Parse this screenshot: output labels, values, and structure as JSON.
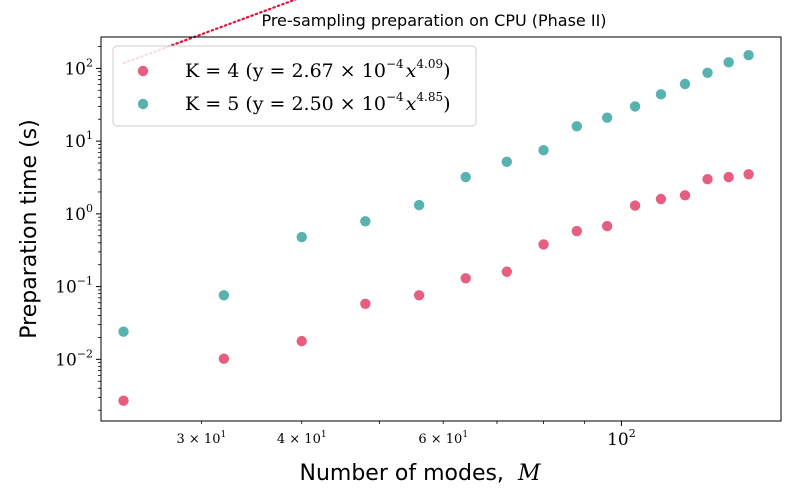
{
  "chart_data": {
    "type": "scatter",
    "title": "Pre-sampling preparation on CPU (Phase II)",
    "xlabel": "Number of modes,",
    "xlabel_var": "M",
    "ylabel": "Preparation time (s)",
    "x_scale": "log",
    "y_scale": "log",
    "xlim": [
      22.5,
      158
    ],
    "ylim": [
      0.00142,
      270
    ],
    "legend_position": "upper-left",
    "x_ticks": [
      {
        "value": 30,
        "mantissa": "3 × 10",
        "exp": "1"
      },
      {
        "value": 40,
        "mantissa": "4 × 10",
        "exp": "1"
      },
      {
        "value": 60,
        "mantissa": "6 × 10",
        "exp": "1"
      },
      {
        "value": 100,
        "mantissa": "10",
        "exp": "2"
      }
    ],
    "y_ticks": [
      {
        "value": 0.01,
        "base": "10",
        "exp": "−2"
      },
      {
        "value": 0.1,
        "base": "10",
        "exp": "−1"
      },
      {
        "value": 1,
        "base": "10",
        "exp": "0"
      },
      {
        "value": 10,
        "base": "10",
        "exp": "1"
      },
      {
        "value": 100,
        "base": "10",
        "exp": "2"
      }
    ],
    "series": [
      {
        "name": "K = 4",
        "legend_label": "K = 4 (y = 2.67 × 10^−4 x^4.09)",
        "legend_main": "K = 4 (y = 2.67 × 10",
        "legend_exp1": "−4",
        "legend_mid": "x",
        "legend_exp2": "4.09",
        "legend_end": ")",
        "color": "#e3436a",
        "fit_color": "#e0143c",
        "fit": {
          "coef": 0.000267,
          "power": 4.09
        },
        "x": [
          24,
          32,
          40,
          48,
          56,
          64,
          72,
          80,
          88,
          96,
          104,
          112,
          120,
          128,
          136,
          144
        ],
        "y": [
          0.0027,
          0.0102,
          0.0178,
          0.058,
          0.076,
          0.13,
          0.16,
          0.38,
          0.58,
          0.68,
          1.3,
          1.6,
          1.8,
          3.0,
          3.2,
          3.5
        ]
      },
      {
        "name": "K = 5",
        "legend_label": "K = 5 (y = 2.50 × 10^−4 x^4.85)",
        "legend_main": "K = 5 (y = 2.50 × 10",
        "legend_exp1": "−4",
        "legend_mid": "x",
        "legend_exp2": "4.85",
        "legend_end": ")",
        "color": "#3ba5a2",
        "fit_color": "#0e8483",
        "fit": {
          "coef": 0.00025,
          "power": 4.85
        },
        "x": [
          24,
          32,
          40,
          48,
          56,
          64,
          72,
          80,
          88,
          96,
          104,
          112,
          120,
          128,
          136,
          144
        ],
        "y": [
          0.024,
          0.076,
          0.48,
          0.79,
          1.32,
          3.2,
          5.2,
          7.5,
          16,
          21,
          30,
          44,
          61,
          87,
          121,
          152
        ]
      }
    ]
  }
}
